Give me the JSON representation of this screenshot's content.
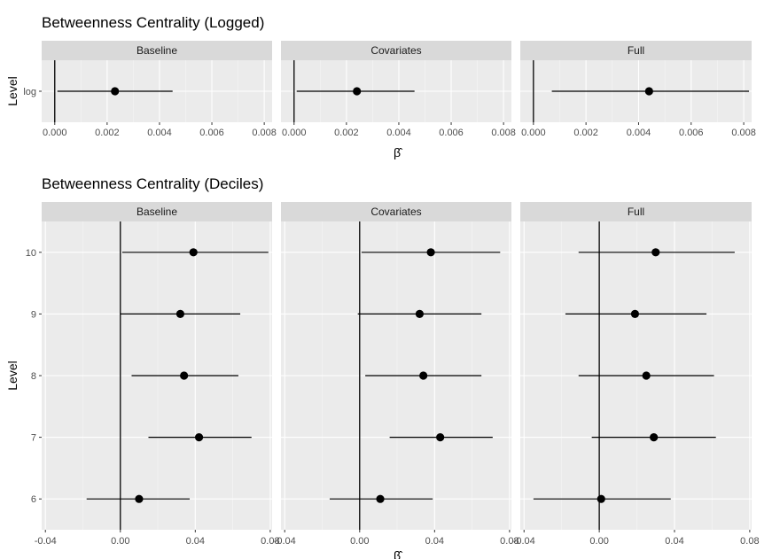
{
  "chart_data": [
    {
      "type": "scatter",
      "title": "Betweenness Centrality (Logged)",
      "xlabel": "β̂",
      "ylabel": "Level",
      "facets": [
        "Baseline",
        "Covariates",
        "Full"
      ],
      "categories": [
        "log"
      ],
      "xlim": [
        -0.0005,
        0.0083
      ],
      "xticks": [
        0.0,
        0.002,
        0.004,
        0.006,
        0.008
      ],
      "xtick_labels": [
        "0.000",
        "0.002",
        "0.004",
        "0.006",
        "0.008"
      ],
      "vline": 0,
      "grid": true,
      "series": [
        {
          "facet": "Baseline",
          "points": [
            {
              "level": "log",
              "estimate": 0.0023,
              "lower": 0.0001,
              "upper": 0.0045
            }
          ]
        },
        {
          "facet": "Covariates",
          "points": [
            {
              "level": "log",
              "estimate": 0.0024,
              "lower": 0.0001,
              "upper": 0.0046
            }
          ]
        },
        {
          "facet": "Full",
          "points": [
            {
              "level": "log",
              "estimate": 0.0044,
              "lower": 0.0007,
              "upper": 0.0082
            }
          ]
        }
      ]
    },
    {
      "type": "scatter",
      "title": "Betweenness Centrality (Deciles)",
      "xlabel": "β̂",
      "ylabel": "Level",
      "facets": [
        "Baseline",
        "Covariates",
        "Full"
      ],
      "categories": [
        "6",
        "7",
        "8",
        "9",
        "10"
      ],
      "xlim": [
        -0.042,
        0.081
      ],
      "xticks": [
        -0.04,
        0.0,
        0.04,
        0.08
      ],
      "xtick_labels": [
        "-0.04",
        "0.00",
        "0.04",
        "0.08"
      ],
      "vline": 0,
      "grid": true,
      "series": [
        {
          "facet": "Baseline",
          "points": [
            {
              "level": "10",
              "estimate": 0.039,
              "lower": 0.001,
              "upper": 0.079
            },
            {
              "level": "9",
              "estimate": 0.032,
              "lower": 0.0,
              "upper": 0.064
            },
            {
              "level": "8",
              "estimate": 0.034,
              "lower": 0.006,
              "upper": 0.063
            },
            {
              "level": "7",
              "estimate": 0.042,
              "lower": 0.015,
              "upper": 0.07
            },
            {
              "level": "6",
              "estimate": 0.01,
              "lower": -0.018,
              "upper": 0.037
            }
          ]
        },
        {
          "facet": "Covariates",
          "points": [
            {
              "level": "10",
              "estimate": 0.038,
              "lower": 0.001,
              "upper": 0.075
            },
            {
              "level": "9",
              "estimate": 0.032,
              "lower": -0.001,
              "upper": 0.065
            },
            {
              "level": "8",
              "estimate": 0.034,
              "lower": 0.003,
              "upper": 0.065
            },
            {
              "level": "7",
              "estimate": 0.043,
              "lower": 0.016,
              "upper": 0.071
            },
            {
              "level": "6",
              "estimate": 0.011,
              "lower": -0.016,
              "upper": 0.039
            }
          ]
        },
        {
          "facet": "Full",
          "points": [
            {
              "level": "10",
              "estimate": 0.03,
              "lower": -0.011,
              "upper": 0.072
            },
            {
              "level": "9",
              "estimate": 0.019,
              "lower": -0.018,
              "upper": 0.057
            },
            {
              "level": "8",
              "estimate": 0.025,
              "lower": -0.011,
              "upper": 0.061
            },
            {
              "level": "7",
              "estimate": 0.029,
              "lower": -0.004,
              "upper": 0.062
            },
            {
              "level": "6",
              "estimate": 0.001,
              "lower": -0.035,
              "upper": 0.038
            }
          ]
        }
      ]
    }
  ],
  "colors": {
    "panel_bg": "#ebebeb",
    "strip_bg": "#d9d9d9",
    "grid_major": "#ffffff",
    "point": "#000000",
    "errorbar": "#000000",
    "zero_line": "#000000"
  }
}
